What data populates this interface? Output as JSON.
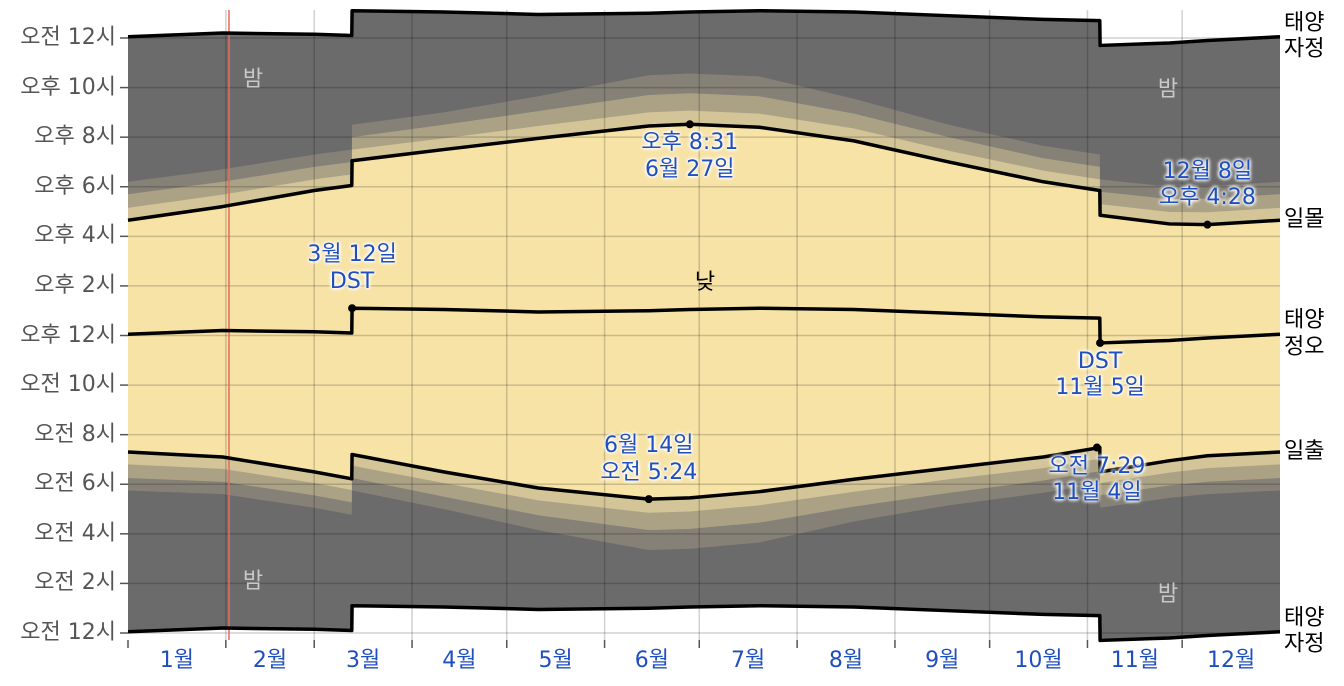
{
  "chart_data": {
    "type": "daylight",
    "xlim": [
      0,
      365
    ],
    "xticks": [
      {
        "value": 0,
        "label": "1월"
      },
      {
        "value": 31,
        "label": "2월"
      },
      {
        "value": 59,
        "label": "3월"
      },
      {
        "value": 90,
        "label": "4월"
      },
      {
        "value": 120,
        "label": "5월"
      },
      {
        "value": 151,
        "label": "6월"
      },
      {
        "value": 181,
        "label": "7월"
      },
      {
        "value": 212,
        "label": "8월"
      },
      {
        "value": 243,
        "label": "9월"
      },
      {
        "value": 273,
        "label": "10월"
      },
      {
        "value": 304,
        "label": "11월"
      },
      {
        "value": 334,
        "label": "12월"
      }
    ],
    "ylim": [
      0,
      24
    ],
    "yticks": [
      {
        "value": 0,
        "label": "오전 12시"
      },
      {
        "value": 2,
        "label": "오전 2시"
      },
      {
        "value": 4,
        "label": "오전 4시"
      },
      {
        "value": 6,
        "label": "오전 6시"
      },
      {
        "value": 8,
        "label": "오전 8시"
      },
      {
        "value": 10,
        "label": "오전 10시"
      },
      {
        "value": 12,
        "label": "오후 12시"
      },
      {
        "value": 14,
        "label": "오후 2시"
      },
      {
        "value": 16,
        "label": "오후 4시"
      },
      {
        "value": 18,
        "label": "오후 6시"
      },
      {
        "value": 20,
        "label": "오후 8시"
      },
      {
        "value": 22,
        "label": "오후 10시"
      },
      {
        "value": 24,
        "label": "오전 12시"
      }
    ],
    "grid": true,
    "today": 32,
    "today_color": "#e86a5a",
    "x": [
      0,
      30,
      59,
      70.9,
      71,
      100,
      130,
      165,
      178,
      200,
      230,
      260,
      290,
      307.9,
      308,
      330,
      342,
      365
    ],
    "series": [
      {
        "name": "태양\n자정",
        "color": "#000000",
        "fill": "#6b6b6b",
        "fill_to": 1,
        "values": [
          24.05,
          24.2,
          24.15,
          24.1,
          25.1,
          25.05,
          24.95,
          25.0,
          25.05,
          25.1,
          25.05,
          24.9,
          24.75,
          24.7,
          23.7,
          23.8,
          23.9,
          24.05
        ]
      },
      {
        "name": "태양\n자정",
        "color": "#000000",
        "values": [
          0.05,
          0.2,
          0.15,
          0.1,
          1.1,
          1.05,
          0.95,
          1.0,
          1.05,
          1.1,
          1.05,
          0.9,
          0.75,
          0.7,
          -0.3,
          -0.2,
          -0.1,
          0.05
        ]
      },
      {
        "fill": "#858177",
        "fill_to": 3,
        "values": [
          18.2,
          18.7,
          19.3,
          19.5,
          20.5,
          21.0,
          21.65,
          22.5,
          22.57,
          22.45,
          21.55,
          20.5,
          19.65,
          19.3,
          18.3,
          18.0,
          18.02,
          18.2
        ]
      },
      {
        "values": [
          5.75,
          5.6,
          5.05,
          4.77,
          5.75,
          5.0,
          4.15,
          3.35,
          3.4,
          3.65,
          4.5,
          5.15,
          5.65,
          6.03,
          5.05,
          5.45,
          5.6,
          5.75
        ]
      },
      {
        "fill": "#ab a286",
        "fill_to": 5,
        "values": [
          17.7,
          18.2,
          18.8,
          19.0,
          20.0,
          20.5,
          21.05,
          21.7,
          21.77,
          21.65,
          20.95,
          20.0,
          19.15,
          18.8,
          17.8,
          17.5,
          17.52,
          17.7
        ]
      },
      {
        "values": [
          6.25,
          6.1,
          5.55,
          5.27,
          6.25,
          5.5,
          4.75,
          4.15,
          4.2,
          4.45,
          5.1,
          5.65,
          6.15,
          6.53,
          5.55,
          5.95,
          6.1,
          6.25
        ]
      },
      {
        "fill": "#d3c597",
        "fill_to": 7,
        "values": [
          17.15,
          17.68,
          18.3,
          18.5,
          19.5,
          19.95,
          20.45,
          21.0,
          21.07,
          20.95,
          20.35,
          19.45,
          18.65,
          18.3,
          17.3,
          16.98,
          16.97,
          17.15
        ]
      },
      {
        "values": [
          6.8,
          6.62,
          6.05,
          5.77,
          6.75,
          6.05,
          5.35,
          4.85,
          4.9,
          5.15,
          5.7,
          6.2,
          6.65,
          7.03,
          6.05,
          6.47,
          6.65,
          6.8
        ]
      },
      {
        "name": "일몰",
        "color": "#000000",
        "fill": "#f7e3a6",
        "fill_to": 9,
        "values": [
          16.65,
          17.2,
          17.85,
          18.05,
          19.05,
          19.5,
          19.95,
          20.45,
          20.52,
          20.4,
          19.85,
          19.0,
          18.2,
          17.85,
          16.85,
          16.5,
          16.47,
          16.65
        ]
      },
      {
        "name": "일출",
        "color": "#000000",
        "values": [
          7.3,
          7.1,
          6.5,
          6.22,
          7.2,
          6.5,
          5.85,
          5.4,
          5.45,
          5.7,
          6.2,
          6.65,
          7.1,
          7.48,
          6.5,
          6.95,
          7.15,
          7.3
        ]
      },
      {
        "name": "태양\n정오",
        "color": "#000000",
        "values": [
          12.05,
          12.2,
          12.15,
          12.1,
          13.1,
          13.05,
          12.95,
          13.0,
          13.05,
          13.1,
          13.05,
          12.9,
          12.75,
          12.7,
          11.7,
          11.8,
          11.9,
          12.05
        ]
      }
    ],
    "region_labels": [
      "밤",
      "밤",
      "밤",
      "밤",
      "낮"
    ],
    "annotations": [
      {
        "text": "오후 8:31\n6월 27일",
        "x": 178,
        "y": 20.52,
        "position": "below"
      },
      {
        "text": "12월 8일\n오후 4:28",
        "x": 342,
        "y": 16.47,
        "position": "above"
      },
      {
        "text": "3월 12일\nDST",
        "x": 71,
        "y": 13.1,
        "position": "above"
      },
      {
        "text": "DST\n11월 5일",
        "x": 308,
        "y": 11.7,
        "position": "below"
      },
      {
        "text": "6월 14일\n오전 5:24",
        "x": 165,
        "y": 5.4,
        "position": "above"
      },
      {
        "text": "오전 7:29\n11월 4일",
        "x": 307,
        "y": 7.48,
        "position": "below"
      }
    ],
    "annotation_color": "#1f4fbf"
  }
}
